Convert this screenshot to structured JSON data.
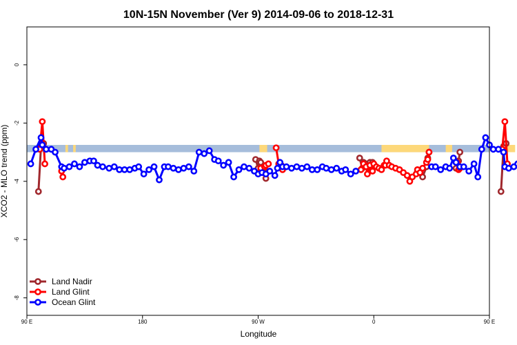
{
  "chart_data": {
    "type": "line",
    "title": "10N-15N November (Ver 9)   2014-09-06 to 2018-12-31",
    "xlabel": "Longitude",
    "ylabel": "XCO2 - MLO trend (ppm)",
    "xlim": [
      90,
      450
    ],
    "ylim": [
      -8.6,
      1.3
    ],
    "x_ticks": [
      {
        "value": 90,
        "label": "90 E"
      },
      {
        "value": 180,
        "label": "180"
      },
      {
        "value": 270,
        "label": "90 W"
      },
      {
        "value": 360,
        "label": "0"
      },
      {
        "value": 450,
        "label": "90 E"
      },
      {
        "value": 540,
        "label": "180"
      }
    ],
    "y_ticks": [
      {
        "value": 0,
        "label": "0"
      },
      {
        "value": -2,
        "label": "-2"
      },
      {
        "value": -4,
        "label": "-4"
      },
      {
        "value": -6,
        "label": "-6"
      },
      {
        "value": -8,
        "label": "-8"
      }
    ],
    "grid": false,
    "legend_position": "bottom-left",
    "band": {
      "ymin": -3.0,
      "ymax": -2.75,
      "color": "#a6bddb"
    },
    "land_fill_color": "#fdd87a",
    "land_segments": [
      [
        120,
        122
      ],
      [
        126,
        128
      ],
      [
        271,
        277
      ],
      [
        366,
        403
      ],
      [
        416,
        421
      ],
      [
        464,
        470
      ],
      [
        475,
        477
      ]
    ],
    "series": [
      {
        "name": "Land Nadir",
        "color": "#a0282d",
        "segments": [
          {
            "x": [
              99,
              101,
              103
            ],
            "y": [
              -4.35,
              -2.8,
              -2.7
            ]
          },
          {
            "x": [
              268,
              270,
              271,
              272,
              275,
              276
            ],
            "y": [
              -3.25,
              -3.55,
              -3.3,
              -3.35,
              -3.55,
              -3.9
            ]
          },
          {
            "x": [
              288
            ],
            "y": [
              -3.55
            ]
          },
          {
            "x": [
              349,
              351,
              352,
              354,
              356,
              357,
              359
            ],
            "y": [
              -3.2,
              -3.55,
              -3.35,
              -3.4,
              -3.5,
              -3.35,
              -3.35
            ]
          },
          {
            "x": [
              394,
              396,
              398,
              401,
              402,
              403
            ],
            "y": [
              -3.65,
              -3.7,
              -3.85,
              -3.5,
              -3.2,
              -3.0
            ]
          },
          {
            "x": [
              424,
              426,
              427
            ],
            "y": [
              -3.55,
              -3.3,
              -3.0
            ]
          },
          {
            "x": [
              459,
              461,
              463
            ],
            "y": [
              -4.35,
              -2.8,
              -2.7
            ]
          }
        ]
      },
      {
        "name": "Land Glint",
        "color": "#ff0000",
        "segments": [
          {
            "x": [
              100,
              102,
              104
            ],
            "y": [
              -2.9,
              -1.95,
              -3.4
            ]
          },
          {
            "x": [
              117,
              118
            ],
            "y": [
              -3.65,
              -3.85
            ]
          },
          {
            "x": [
              272,
              275,
              276,
              278
            ],
            "y": [
              -3.55,
              -3.5,
              -3.45,
              -3.4
            ]
          },
          {
            "x": [
              284,
              286,
              288,
              289
            ],
            "y": [
              -2.85,
              -3.4,
              -3.45,
              -3.6
            ]
          },
          {
            "x": [
              350,
              352,
              354,
              355,
              357,
              359,
              360,
              362,
              364,
              366,
              368,
              369,
              370,
              372,
              374,
              377,
              380,
              383,
              386,
              388,
              390,
              393,
              394,
              396,
              398,
              401,
              402,
              403
            ],
            "y": [
              -3.6,
              -3.4,
              -3.5,
              -3.75,
              -3.45,
              -3.65,
              -3.4,
              -3.5,
              -3.55,
              -3.6,
              -3.45,
              -3.45,
              -3.3,
              -3.45,
              -3.5,
              -3.55,
              -3.6,
              -3.7,
              -3.8,
              -4.0,
              -3.85,
              -3.75,
              -3.6,
              -3.7,
              -3.55,
              -3.35,
              -3.25,
              -3.0
            ]
          },
          {
            "x": [
              425,
              426,
              427
            ],
            "y": [
              -3.35,
              -3.6,
              -3.55
            ]
          },
          {
            "x": [
              460,
              462,
              464
            ],
            "y": [
              -2.9,
              -1.95,
              -3.4
            ]
          },
          {
            "x": [
              477,
              478
            ],
            "y": [
              -3.65,
              -3.85
            ]
          }
        ]
      },
      {
        "name": "Ocean Glint",
        "color": "#0000ff",
        "segments": [
          {
            "x": [
              93,
              97,
              101,
              102,
              105,
              109,
              112,
              117,
              119,
              123,
              127,
              131,
              135,
              139,
              142,
              145,
              149,
              154,
              158,
              162,
              166,
              170,
              174,
              177,
              181,
              185,
              189,
              193,
              197,
              200,
              204,
              208,
              212,
              216,
              220,
              224,
              228,
              232,
              236,
              239,
              243,
              247,
              251,
              255,
              259,
              263,
              267,
              270,
              273,
              276,
              279,
              283,
              285,
              287,
              289
            ],
            "y": [
              -3.4,
              -2.9,
              -2.5,
              -2.75,
              -2.9,
              -2.9,
              -3.0,
              -3.5,
              -3.55,
              -3.5,
              -3.4,
              -3.5,
              -3.35,
              -3.3,
              -3.3,
              -3.45,
              -3.5,
              -3.55,
              -3.5,
              -3.6,
              -3.6,
              -3.6,
              -3.55,
              -3.5,
              -3.75,
              -3.6,
              -3.5,
              -3.95,
              -3.5,
              -3.5,
              -3.55,
              -3.6,
              -3.55,
              -3.5,
              -3.65,
              -3.0,
              -3.05,
              -2.95,
              -3.25,
              -3.3,
              -3.45,
              -3.35,
              -3.85,
              -3.6,
              -3.5,
              -3.55,
              -3.65,
              -3.75,
              -3.7,
              -3.75,
              -3.65,
              -3.8,
              -3.55,
              -3.35,
              -3.5
            ]
          },
          {
            "x": [
              292,
              296,
              300,
              304,
              308,
              312,
              316,
              320,
              323,
              327,
              331,
              335,
              338,
              342,
              346
            ],
            "y": [
              -3.5,
              -3.55,
              -3.5,
              -3.55,
              -3.5,
              -3.6,
              -3.6,
              -3.5,
              -3.55,
              -3.6,
              -3.55,
              -3.65,
              -3.6,
              -3.75,
              -3.65
            ]
          },
          {
            "x": [
              405,
              408,
              412,
              416,
              419,
              422,
              424,
              427,
              430,
              434,
              438,
              441,
              444,
              447,
              450,
              453,
              457,
              461,
              462,
              465,
              469,
              472,
              477,
              479,
              483,
              487,
              491,
              495,
              499,
              502,
              506,
              510,
              514,
              518,
              522,
              526
            ],
            "y": [
              -3.5,
              -3.5,
              -3.6,
              -3.5,
              -3.55,
              -3.2,
              -3.35,
              -3.5,
              -3.5,
              -3.65,
              -3.4,
              -3.85,
              -2.9,
              -2.5,
              -2.75,
              -2.9,
              -2.9,
              -3.0,
              -3.5,
              -3.55,
              -3.5,
              -3.4,
              -3.5,
              -3.35,
              -3.3,
              -3.3,
              -3.45,
              -3.5,
              -3.55,
              -3.5,
              -3.6,
              -3.6,
              -3.6,
              -3.55,
              -3.5,
              -3.6
            ]
          }
        ]
      }
    ]
  }
}
